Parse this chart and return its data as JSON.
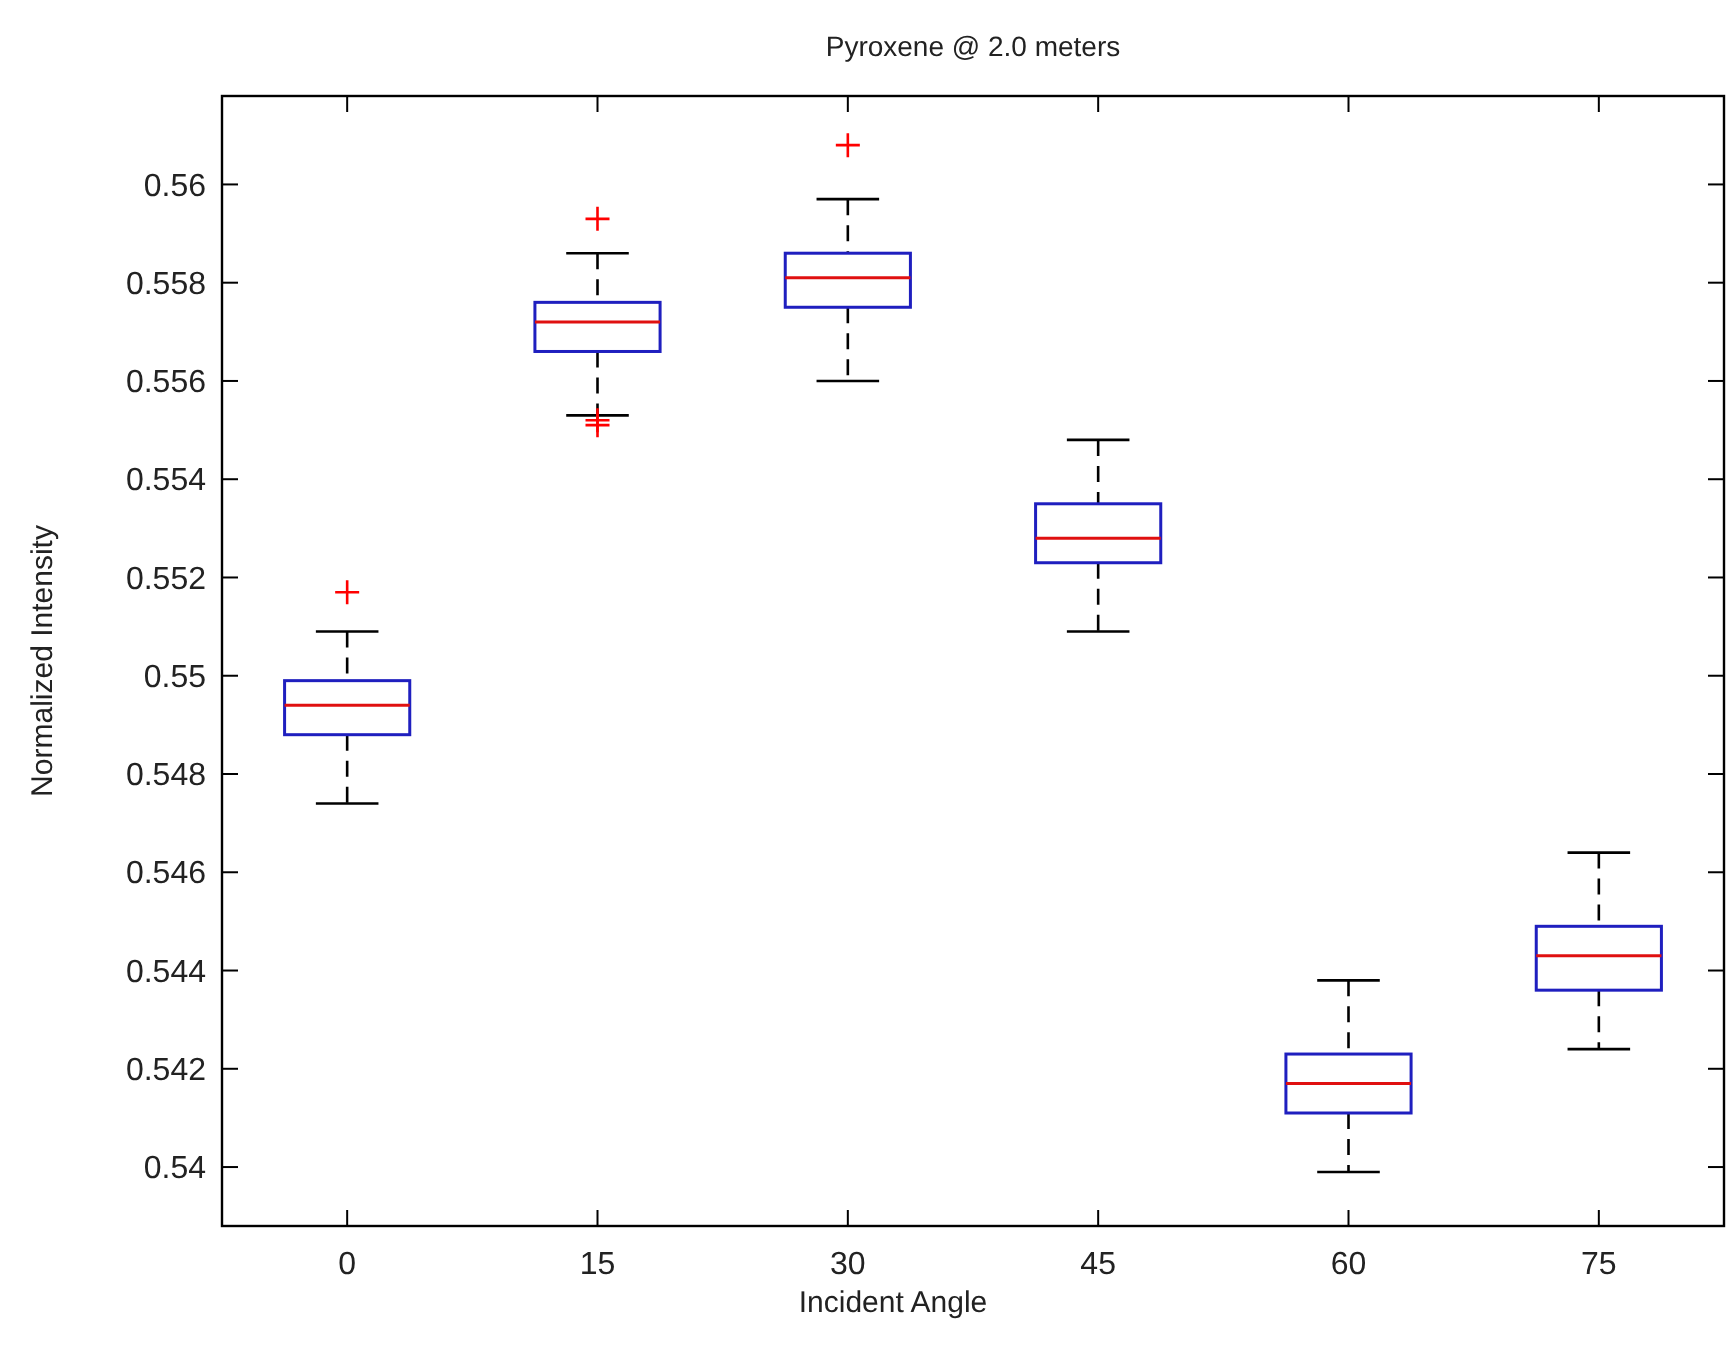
{
  "chart_data": {
    "type": "box",
    "title": "Pyroxene @ 2.0 meters",
    "xlabel": "Incident Angle",
    "ylabel": "Normalized Intensity",
    "categories": [
      "0",
      "15",
      "30",
      "45",
      "60",
      "75"
    ],
    "color": "#1f1fbf",
    "marker": "cross",
    "grid": false,
    "ylim": [
      0.5388,
      0.5618
    ],
    "yticks": [
      0.54,
      0.542,
      0.544,
      0.546,
      0.548,
      0.55,
      0.552,
      0.554,
      0.556,
      0.558,
      0.56
    ],
    "boxes": [
      {
        "low": 0.5474,
        "q1": 0.5488,
        "median": 0.5494,
        "q3": 0.5499,
        "high": 0.5509,
        "outliers": [
          0.5517
        ]
      },
      {
        "low": 0.5553,
        "q1": 0.5566,
        "median": 0.5572,
        "q3": 0.5576,
        "high": 0.5586,
        "outliers": [
          0.5593,
          0.5552,
          0.5551
        ]
      },
      {
        "low": 0.556,
        "q1": 0.5575,
        "median": 0.5581,
        "q3": 0.5586,
        "high": 0.5597,
        "outliers": [
          0.5608
        ]
      },
      {
        "low": 0.5509,
        "q1": 0.5523,
        "median": 0.5528,
        "q3": 0.5535,
        "high": 0.5548
      },
      {
        "low": 0.5399,
        "q1": 0.5411,
        "median": 0.5417,
        "q3": 0.5423,
        "high": 0.5438
      },
      {
        "low": 0.5424,
        "q1": 0.5436,
        "median": 0.5443,
        "q3": 0.5449,
        "high": 0.5464
      }
    ]
  }
}
